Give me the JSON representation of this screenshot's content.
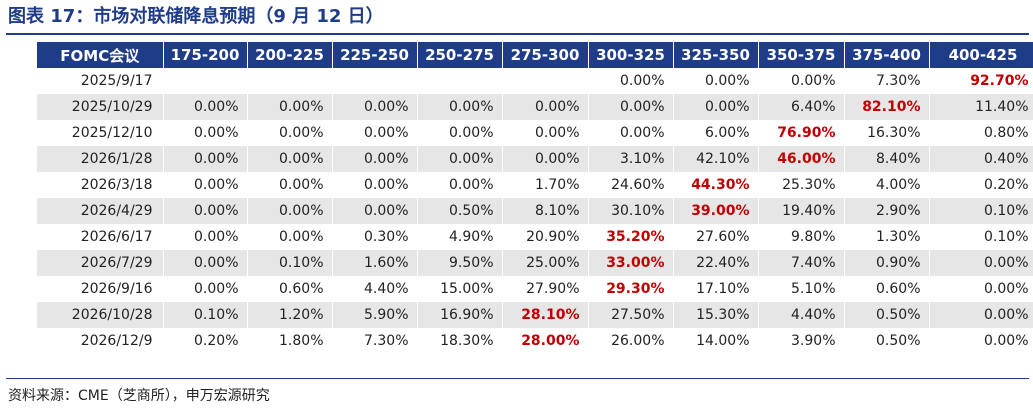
{
  "title": "图表 17：市场对联储降息预期（9 月 12 日）",
  "source": "资料来源：CME（芝商所），申万宏源研究",
  "accent_color": "#1f3c88",
  "highlight_color": "#c00000",
  "table": {
    "headers": [
      "FOMC会议",
      "175-200",
      "200-225",
      "225-250",
      "250-275",
      "275-300",
      "300-325",
      "325-350",
      "350-375",
      "375-400",
      "400-425"
    ],
    "rows": [
      {
        "date": "2025/9/17",
        "cells": [
          "",
          "",
          "",
          "",
          "",
          "0.00%",
          "0.00%",
          "0.00%",
          "7.30%",
          "92.70%"
        ],
        "highlight": 9
      },
      {
        "date": "2025/10/29",
        "cells": [
          "0.00%",
          "0.00%",
          "0.00%",
          "0.00%",
          "0.00%",
          "0.00%",
          "0.00%",
          "6.40%",
          "82.10%",
          "11.40%"
        ],
        "highlight": 8
      },
      {
        "date": "2025/12/10",
        "cells": [
          "0.00%",
          "0.00%",
          "0.00%",
          "0.00%",
          "0.00%",
          "0.00%",
          "6.00%",
          "76.90%",
          "16.30%",
          "0.80%"
        ],
        "highlight": 7
      },
      {
        "date": "2026/1/28",
        "cells": [
          "0.00%",
          "0.00%",
          "0.00%",
          "0.00%",
          "0.00%",
          "3.10%",
          "42.10%",
          "46.00%",
          "8.40%",
          "0.40%"
        ],
        "highlight": 7
      },
      {
        "date": "2026/3/18",
        "cells": [
          "0.00%",
          "0.00%",
          "0.00%",
          "0.00%",
          "1.70%",
          "24.60%",
          "44.30%",
          "25.30%",
          "4.00%",
          "0.20%"
        ],
        "highlight": 6
      },
      {
        "date": "2026/4/29",
        "cells": [
          "0.00%",
          "0.00%",
          "0.00%",
          "0.50%",
          "8.10%",
          "30.10%",
          "39.00%",
          "19.40%",
          "2.90%",
          "0.10%"
        ],
        "highlight": 6
      },
      {
        "date": "2026/6/17",
        "cells": [
          "0.00%",
          "0.00%",
          "0.30%",
          "4.90%",
          "20.90%",
          "35.20%",
          "27.60%",
          "9.80%",
          "1.30%",
          "0.10%"
        ],
        "highlight": 5
      },
      {
        "date": "2026/7/29",
        "cells": [
          "0.00%",
          "0.10%",
          "1.60%",
          "9.50%",
          "25.00%",
          "33.00%",
          "22.40%",
          "7.40%",
          "0.90%",
          "0.00%"
        ],
        "highlight": 5
      },
      {
        "date": "2026/9/16",
        "cells": [
          "0.00%",
          "0.60%",
          "4.40%",
          "15.00%",
          "27.90%",
          "29.30%",
          "17.10%",
          "5.10%",
          "0.60%",
          "0.00%"
        ],
        "highlight": 5
      },
      {
        "date": "2026/10/28",
        "cells": [
          "0.10%",
          "1.20%",
          "5.90%",
          "16.90%",
          "28.10%",
          "27.50%",
          "15.30%",
          "4.40%",
          "0.50%",
          "0.00%"
        ],
        "highlight": 4
      },
      {
        "date": "2026/12/9",
        "cells": [
          "0.20%",
          "1.80%",
          "7.30%",
          "18.30%",
          "28.00%",
          "26.00%",
          "14.00%",
          "3.90%",
          "0.50%",
          "0.00%"
        ],
        "highlight": 4
      }
    ]
  }
}
